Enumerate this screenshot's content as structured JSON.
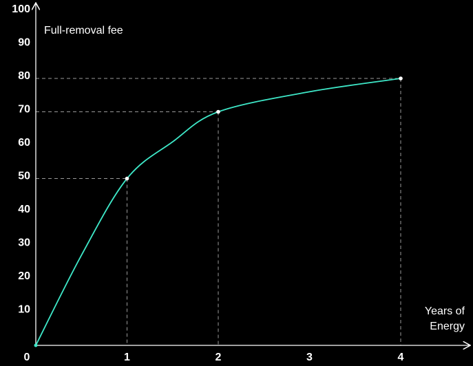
{
  "chart_data": {
    "type": "line",
    "title": "",
    "ylabel": "Full-removal fee",
    "xlabel_lines": [
      "Years of",
      "Energy"
    ],
    "x_ticks": [
      "0",
      "1",
      "2",
      "3",
      "4"
    ],
    "y_ticks": [
      "10",
      "20",
      "30",
      "40",
      "50",
      "60",
      "70",
      "80",
      "90",
      "100"
    ],
    "xlim": [
      0,
      4.7
    ],
    "ylim": [
      0,
      100
    ],
    "grid": false,
    "series": [
      {
        "name": "Full-removal fee",
        "x": [
          0,
          0.5,
          1,
          1.5,
          2,
          3,
          4
        ],
        "y": [
          0,
          27,
          50,
          61,
          70,
          76,
          80
        ]
      }
    ],
    "highlight_points": [
      {
        "x": 1,
        "y": 50
      },
      {
        "x": 2,
        "y": 70
      },
      {
        "x": 4,
        "y": 80
      }
    ]
  },
  "colors": {
    "background": "#000000",
    "axis": "#ffffff",
    "line": "#3ee8c8",
    "guide": "#9a9a9a",
    "point": "#ffffff"
  }
}
